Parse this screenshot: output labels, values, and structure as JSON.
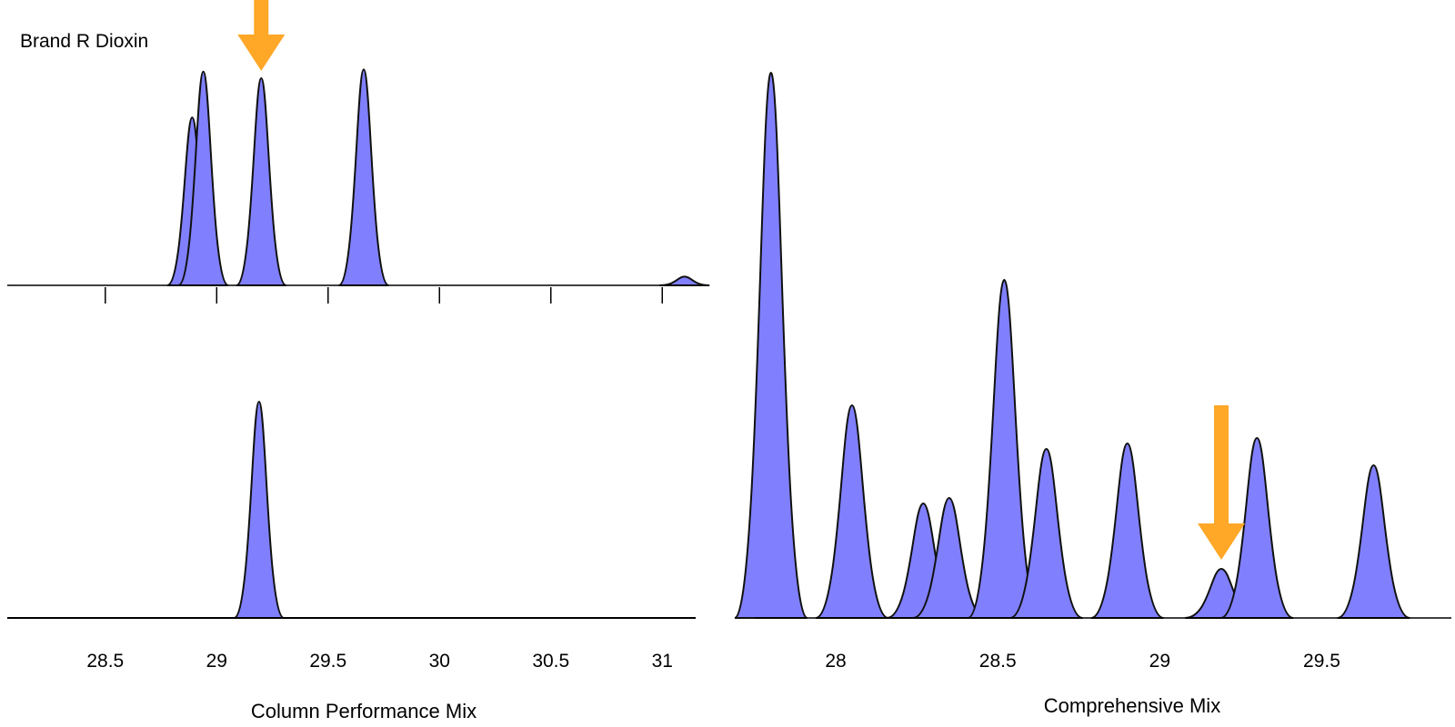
{
  "colors": {
    "fill": "#8080ff",
    "stroke": "#111111",
    "arrow": "#ffa726",
    "axis": "#000000"
  },
  "chart_data": [
    {
      "type": "area",
      "xlabel": "Column Performance Mix",
      "xlim": [
        28.06,
        31.15
      ],
      "ticks": [
        28.5,
        29,
        29.5,
        30,
        30.5,
        31
      ],
      "tick_labels": [
        "28.5",
        "29",
        "29.5",
        "30",
        "30.5",
        "31"
      ],
      "traces": [
        {
          "label": "Brand R Dioxin",
          "arrow_at": 29.2,
          "peaks": [
            {
              "x": 28.89,
              "h": 0.77
            },
            {
              "x": 28.94,
              "h": 0.98
            },
            {
              "x": 29.2,
              "h": 0.95
            },
            {
              "x": 29.66,
              "h": 0.99
            },
            {
              "x": 31.1,
              "h": 0.04
            }
          ]
        },
        {
          "label": "",
          "peaks": [
            {
              "x": 29.19,
              "h": 1.0
            }
          ]
        }
      ]
    },
    {
      "type": "area",
      "xlabel": "Comprehensive Mix",
      "xlim": [
        27.75,
        29.9
      ],
      "ticks": [
        28,
        28.5,
        29,
        29.5
      ],
      "tick_labels": [
        "28",
        "28.5",
        "29",
        "29.5"
      ],
      "arrow_at": 29.19,
      "peaks": [
        {
          "x": 27.8,
          "h": 1.0
        },
        {
          "x": 28.05,
          "h": 0.39
        },
        {
          "x": 28.27,
          "h": 0.21
        },
        {
          "x": 28.35,
          "h": 0.22
        },
        {
          "x": 28.52,
          "h": 0.62
        },
        {
          "x": 28.65,
          "h": 0.31
        },
        {
          "x": 28.9,
          "h": 0.32
        },
        {
          "x": 29.19,
          "h": 0.09
        },
        {
          "x": 29.3,
          "h": 0.33
        },
        {
          "x": 29.66,
          "h": 0.28
        }
      ]
    }
  ]
}
